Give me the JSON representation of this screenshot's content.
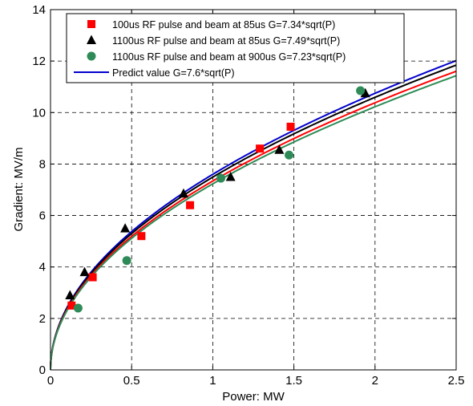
{
  "chart_data": {
    "type": "line",
    "xlabel": "Power: MW",
    "ylabel": "Gradient: MV/m",
    "xlim": [
      0,
      2.5
    ],
    "ylim": [
      0,
      14
    ],
    "xticks": [
      0,
      0.5,
      1,
      1.5,
      2,
      2.5
    ],
    "xtick_labels": [
      "0",
      "0.5",
      "1",
      "1.5",
      "2",
      "2.5"
    ],
    "yticks": [
      0,
      2,
      4,
      6,
      8,
      10,
      12,
      14
    ],
    "ytick_labels": [
      "0",
      "2",
      "4",
      "6",
      "8",
      "10",
      "12",
      "14"
    ],
    "grid": true,
    "grid_style": "dashed",
    "legend_position": "top-left",
    "curve_function": "sqrt",
    "series": [
      {
        "name": "100us RF pulse and beam at 85us G=7.34*sqrt(P)",
        "kind": "scatter",
        "marker": "square",
        "color": "#ff0000",
        "x": [
          0.13,
          0.26,
          0.56,
          0.86,
          1.29,
          1.48
        ],
        "y": [
          2.5,
          3.6,
          5.2,
          6.4,
          8.6,
          9.45
        ]
      },
      {
        "name": "1100us RF pulse and beam at 85us G=7.49*sqrt(P)",
        "kind": "scatter",
        "marker": "triangle",
        "color": "#000000",
        "x": [
          0.12,
          0.21,
          0.46,
          0.82,
          1.11,
          1.41,
          1.94
        ],
        "y": [
          2.9,
          3.8,
          5.5,
          6.85,
          7.5,
          8.55,
          10.75
        ]
      },
      {
        "name": "1100us RF pulse and beam at 900us G=7.23*sqrt(P)",
        "kind": "scatter",
        "marker": "circle",
        "color": "#2e8b57",
        "x": [
          0.17,
          0.47,
          1.05,
          1.47,
          1.91
        ],
        "y": [
          2.4,
          4.25,
          7.45,
          8.35,
          10.85
        ]
      },
      {
        "name": "Predict value G=7.6*sqrt(P)",
        "kind": "line",
        "color": "#0000cc",
        "coefficient": 7.6
      }
    ],
    "fit_curves": [
      {
        "coefficient": 7.49,
        "color": "#000000"
      },
      {
        "coefficient": 7.34,
        "color": "#ff0000"
      },
      {
        "coefficient": 7.23,
        "color": "#2e8b57"
      }
    ]
  }
}
